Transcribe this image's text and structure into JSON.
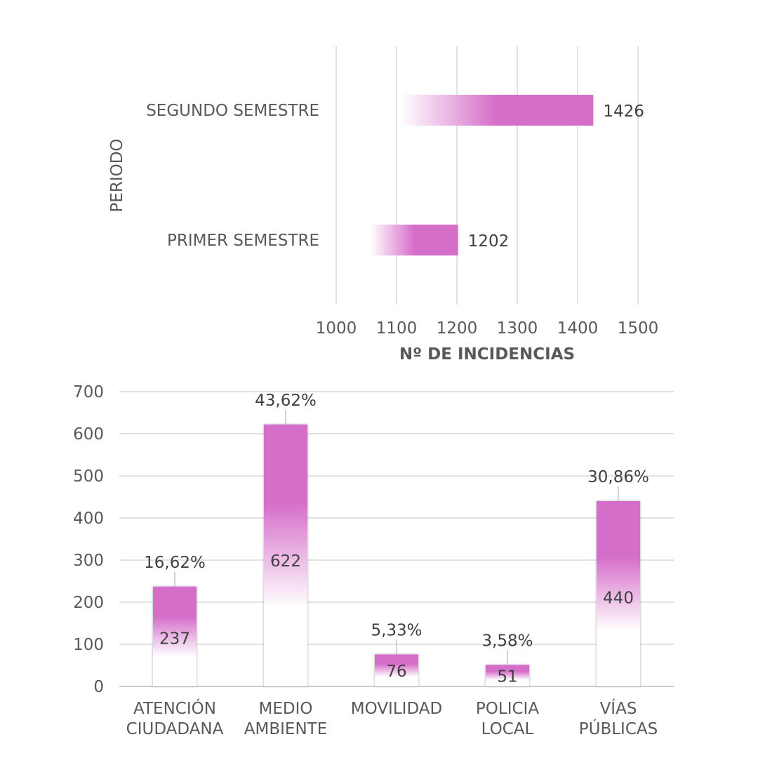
{
  "colors": {
    "bar": "#d56ec9",
    "grid": "#d9d9d9",
    "text": "#595959"
  },
  "chart_data": [
    {
      "type": "bar",
      "orientation": "horizontal",
      "categories": [
        "PRIMER SEMESTRE",
        "SEGUNDO SEMESTRE"
      ],
      "values": [
        1202,
        1426
      ],
      "data_labels": [
        "1202",
        "1426"
      ],
      "xlabel": "Nº DE INCIDENCIAS",
      "ylabel": "PERIODO",
      "xlim": [
        1000,
        1500
      ],
      "xticks": [
        1000,
        1100,
        1200,
        1300,
        1400,
        1500
      ],
      "grid": true,
      "legend": "none"
    },
    {
      "type": "bar",
      "orientation": "vertical",
      "categories": [
        [
          "ATENCIÓN",
          "CIUDADANA"
        ],
        [
          "MEDIO",
          "AMBIENTE"
        ],
        [
          "MOVILIDAD"
        ],
        [
          "POLICIA",
          "LOCAL"
        ],
        [
          "VÍAS",
          "PÚBLICAS"
        ]
      ],
      "values": [
        237,
        622,
        76,
        51,
        440
      ],
      "data_labels": [
        "237",
        "622",
        "76",
        "51",
        "440"
      ],
      "percent_labels": [
        "16,62%",
        "43,62%",
        "5,33%",
        "3,58%",
        "30,86%"
      ],
      "ylim": [
        0,
        700
      ],
      "yticks": [
        0,
        100,
        200,
        300,
        400,
        500,
        600,
        700
      ],
      "grid": true,
      "legend": "none"
    }
  ]
}
